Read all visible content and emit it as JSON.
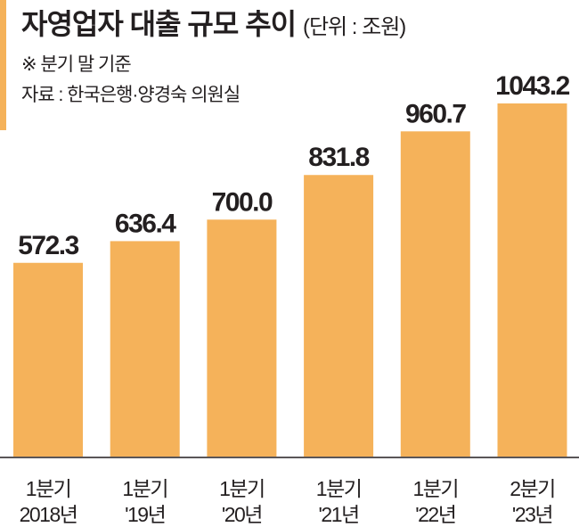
{
  "chart_data": {
    "type": "bar",
    "title": "자영업자 대출 규모 추이",
    "unit_label": "(단위 : 조원)",
    "note": "※ 분기 말 기준",
    "source": "자료 : 한국은행·양경숙 의원실",
    "categories": [
      [
        "1분기",
        "2018년"
      ],
      [
        "1분기",
        "'19년"
      ],
      [
        "1분기",
        "'20년"
      ],
      [
        "1분기",
        "'21년"
      ],
      [
        "1분기",
        "'22년"
      ],
      [
        "2분기",
        "'23년"
      ]
    ],
    "values": [
      572.3,
      636.4,
      700.0,
      831.8,
      960.7,
      1043.2
    ],
    "value_labels": [
      "572.3",
      "636.4",
      "700.0",
      "831.8",
      "960.7",
      "1043.2"
    ],
    "ylim": [
      0,
      1043.2
    ],
    "grid": false,
    "colors": {
      "bar": "#F5B25A",
      "accent": "#F5B25A",
      "axis": "#231f20"
    }
  }
}
